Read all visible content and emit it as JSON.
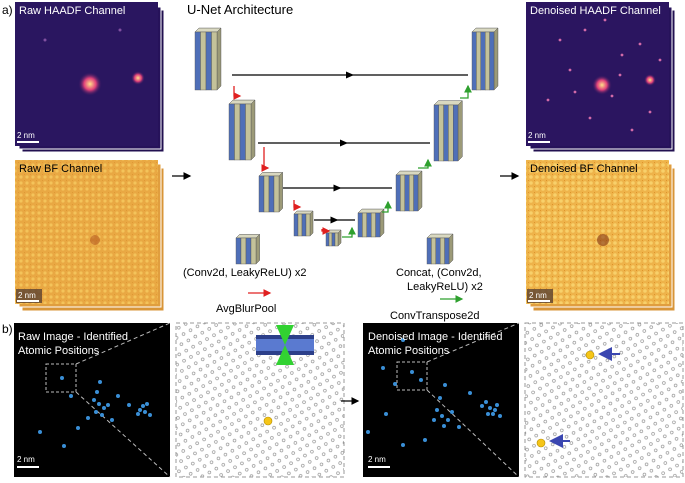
{
  "panel_a": {
    "label": "a)",
    "raw_haadf_title": "Raw HAADF Channel",
    "raw_bf_title": "Raw BF Channel",
    "unet_title": "U-Net Architecture",
    "denoised_haadf_title": "Denoised HAADF Channel",
    "denoised_bf_title": "Denoised BF Channel",
    "scalebar": "2 nm",
    "legend": {
      "conv_line1": "(Conv2d, LeakyReLU) x2",
      "pool": "AvgBlurPool",
      "concat_line1": "Concat, (Conv2d,",
      "concat_line2": "LeakyReLU) x2",
      "upsample": "ConvTranspose2d"
    }
  },
  "panel_b": {
    "label": "b)",
    "raw_title_line1": "Raw Image - Identified",
    "raw_title_line2": "Atomic Positions",
    "denoised_title_line1": "Denoised Image - Identified",
    "denoised_title_line2": "Atomic Positions",
    "scalebar": "2 nm"
  },
  "colors": {
    "haadf_bg": "#2a1660",
    "bf_bg": "#e8a640",
    "block_blue": "#4f6fb8",
    "block_olive": "#c4c29a",
    "pool_arrow": "#e02020",
    "up_arrow": "#2ea02e",
    "skip_arrow": "#000000",
    "atom_blue": "#3a8fd6",
    "atom_yellow": "#f5c518",
    "marker_arrow": "#3a46b0"
  }
}
